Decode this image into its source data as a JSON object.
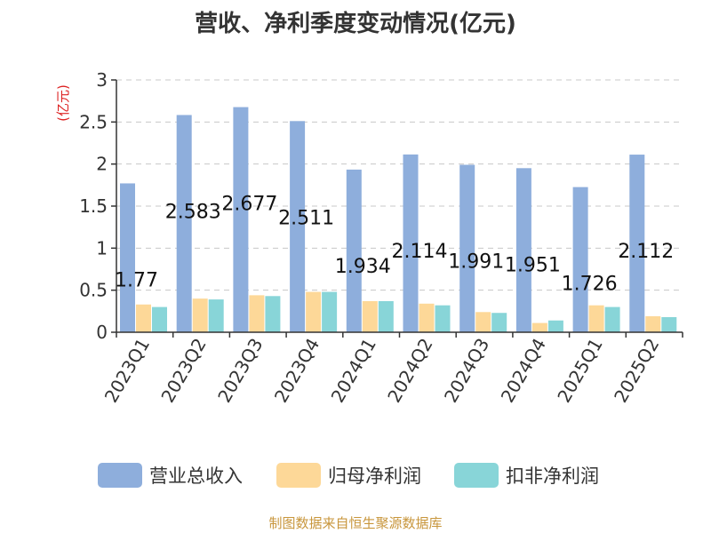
{
  "source": "制图数据来自恒生聚源数据库",
  "chart_data": {
    "type": "bar",
    "title": "营收、净利季度变动情况(亿元)",
    "ylabel": "(亿元)",
    "ylim": [
      0,
      3
    ],
    "yticks": [
      "0",
      "0.5",
      "1",
      "1.5",
      "2",
      "2.5",
      "3"
    ],
    "grid": true,
    "legend_position": "bottom",
    "categories": [
      "2023Q1",
      "2023Q2",
      "2023Q3",
      "2023Q4",
      "2024Q1",
      "2024Q2",
      "2024Q3",
      "2024Q4",
      "2025Q1",
      "2025Q2"
    ],
    "series": [
      {
        "name": "营业总收入",
        "color": "#8eaedc",
        "values": [
          1.77,
          2.583,
          2.677,
          2.511,
          1.934,
          2.114,
          1.991,
          1.951,
          1.726,
          2.112
        ],
        "labels": [
          "1.77",
          "2.583",
          "2.677",
          "2.511",
          "1.934",
          "2.114",
          "1.991",
          "1.951",
          "1.726",
          "2.112"
        ]
      },
      {
        "name": "归母净利润",
        "color": "#fdd898",
        "values": [
          0.33,
          0.4,
          0.44,
          0.48,
          0.37,
          0.34,
          0.24,
          0.11,
          0.32,
          0.19
        ]
      },
      {
        "name": "扣非净利润",
        "color": "#88d5d8",
        "values": [
          0.3,
          0.39,
          0.43,
          0.48,
          0.37,
          0.32,
          0.23,
          0.14,
          0.3,
          0.18
        ]
      }
    ]
  }
}
